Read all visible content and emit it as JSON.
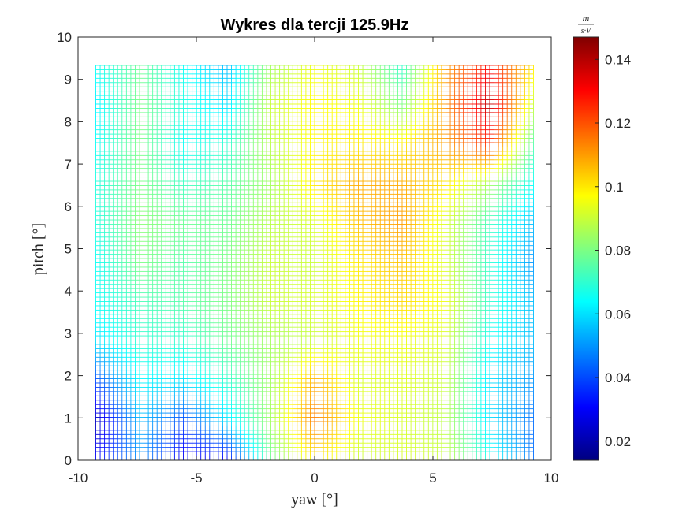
{
  "chart_data": {
    "type": "heatmap",
    "title": "Wykres dla tercji 125.9Hz",
    "xlabel": "yaw [°]",
    "ylabel": "pitch [°]",
    "colorbar_label_num": "m",
    "colorbar_label_den": "s·V",
    "xlim": [
      -10,
      10
    ],
    "ylim": [
      0,
      10
    ],
    "x_ticks": [
      "-10",
      "-5",
      "0",
      "5",
      "10"
    ],
    "y_ticks": [
      "0",
      "1",
      "2",
      "3",
      "4",
      "5",
      "6",
      "7",
      "8",
      "9",
      "10"
    ],
    "colorbar_ticks": [
      "0.02",
      "0.04",
      "0.06",
      "0.08",
      "0.1",
      "0.12",
      "0.14"
    ],
    "colorbar_range": [
      0.014,
      0.147
    ],
    "colormap": "jet",
    "grid_extent": {
      "x": [
        -9.25,
        9.25
      ],
      "y": [
        0,
        9.33
      ]
    },
    "x_samples": [
      -9.25,
      -7.4,
      -5.55,
      -3.7,
      -1.85,
      0,
      1.85,
      3.7,
      5.55,
      7.4,
      9.25
    ],
    "y_samples": [
      0,
      0.933,
      1.866,
      2.8,
      3.732,
      4.665,
      5.598,
      6.531,
      7.464,
      8.397,
      9.33
    ],
    "values": [
      [
        0.03,
        0.05,
        0.028,
        0.03,
        0.078,
        0.1,
        0.09,
        0.092,
        0.09,
        0.066,
        0.045
      ],
      [
        0.022,
        0.055,
        0.04,
        0.06,
        0.085,
        0.115,
        0.095,
        0.092,
        0.088,
        0.06,
        0.045
      ],
      [
        0.04,
        0.063,
        0.06,
        0.07,
        0.085,
        0.108,
        0.092,
        0.093,
        0.09,
        0.06,
        0.05
      ],
      [
        0.06,
        0.07,
        0.07,
        0.078,
        0.085,
        0.09,
        0.095,
        0.095,
        0.092,
        0.065,
        0.055
      ],
      [
        0.065,
        0.073,
        0.075,
        0.08,
        0.09,
        0.092,
        0.098,
        0.102,
        0.095,
        0.07,
        0.055
      ],
      [
        0.065,
        0.08,
        0.075,
        0.08,
        0.09,
        0.09,
        0.1,
        0.105,
        0.092,
        0.07,
        0.05
      ],
      [
        0.068,
        0.082,
        0.078,
        0.078,
        0.088,
        0.092,
        0.105,
        0.11,
        0.092,
        0.072,
        0.055
      ],
      [
        0.068,
        0.08,
        0.072,
        0.075,
        0.085,
        0.1,
        0.108,
        0.108,
        0.1,
        0.085,
        0.065
      ],
      [
        0.065,
        0.08,
        0.065,
        0.07,
        0.088,
        0.098,
        0.1,
        0.1,
        0.11,
        0.125,
        0.075
      ],
      [
        0.062,
        0.08,
        0.068,
        0.06,
        0.09,
        0.098,
        0.095,
        0.08,
        0.112,
        0.14,
        0.09
      ],
      [
        0.065,
        0.078,
        0.065,
        0.055,
        0.085,
        0.095,
        0.09,
        0.07,
        0.11,
        0.13,
        0.1
      ]
    ]
  }
}
